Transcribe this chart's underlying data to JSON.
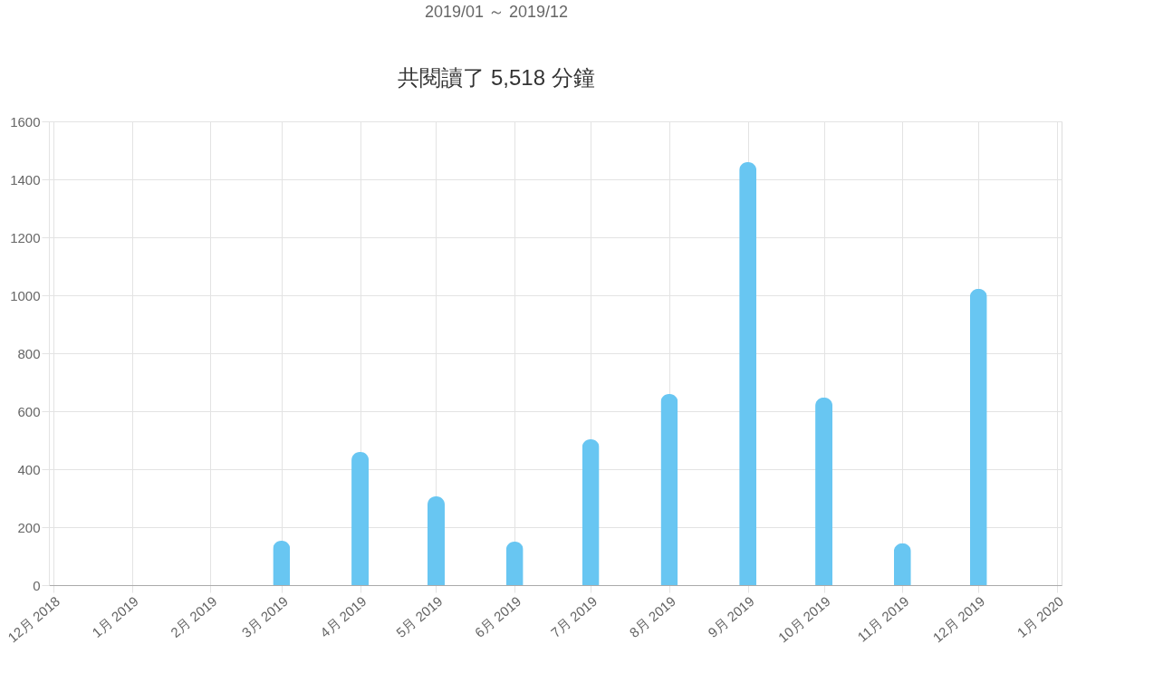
{
  "chart_data": {
    "type": "bar",
    "title": "共閱讀了 5,518 分鐘",
    "subtitle": "2019/01 ～ 2019/12",
    "x": [
      "2019-03-01",
      "2019-04-01",
      "2019-05-01",
      "2019-06-01",
      "2019-07-01",
      "2019-08-01",
      "2019-09-01",
      "2019-10-01",
      "2019-11-01",
      "2019-12-01"
    ],
    "values": [
      153,
      459,
      306,
      150,
      503,
      659,
      1459,
      647,
      144,
      1022
    ],
    "color": "#68c6f2",
    "xlim": [
      "2018-12-01",
      "2020-01-01"
    ],
    "xticks": [
      {
        "value": "2018-12-01",
        "label": "12月 2018"
      },
      {
        "value": "2019-01-01",
        "label": "1月 2019"
      },
      {
        "value": "2019-02-01",
        "label": "2月 2019"
      },
      {
        "value": "2019-03-01",
        "label": "3月 2019"
      },
      {
        "value": "2019-04-01",
        "label": "4月 2019"
      },
      {
        "value": "2019-05-01",
        "label": "5月 2019"
      },
      {
        "value": "2019-06-01",
        "label": "6月 2019"
      },
      {
        "value": "2019-07-01",
        "label": "7月 2019"
      },
      {
        "value": "2019-08-01",
        "label": "8月 2019"
      },
      {
        "value": "2019-09-01",
        "label": "9月 2019"
      },
      {
        "value": "2019-10-01",
        "label": "10月 2019"
      },
      {
        "value": "2019-11-01",
        "label": "11月 2019"
      },
      {
        "value": "2019-12-01",
        "label": "12月 2019"
      },
      {
        "value": "2020-01-01",
        "label": "1月 2020"
      }
    ],
    "ylim": [
      0,
      1600
    ],
    "yticks": [
      0,
      200,
      400,
      600,
      800,
      1000,
      1200,
      1400,
      1600
    ],
    "grid": true
  }
}
